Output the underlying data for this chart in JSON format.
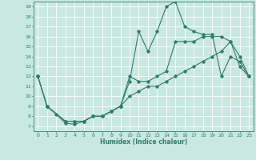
{
  "xlabel": "Humidex (Indice chaleur)",
  "xlim": [
    -0.5,
    23.5
  ],
  "ylim": [
    6.5,
    19.5
  ],
  "xticks": [
    0,
    1,
    2,
    3,
    4,
    5,
    6,
    7,
    8,
    9,
    10,
    11,
    12,
    13,
    14,
    15,
    16,
    17,
    18,
    19,
    20,
    21,
    22,
    23
  ],
  "yticks": [
    7,
    8,
    9,
    10,
    11,
    12,
    13,
    14,
    15,
    16,
    17,
    18,
    19
  ],
  "line_color": "#2e7d6e",
  "bg_color": "#c8e8e0",
  "grid_color": "#b0d8d0",
  "line1_x": [
    0,
    1,
    2,
    3,
    4,
    5,
    6,
    7,
    8,
    9,
    10,
    11,
    12,
    13,
    14,
    15,
    16,
    17,
    18,
    19,
    20,
    21,
    22,
    23
  ],
  "line1_y": [
    12,
    9,
    8.2,
    7.3,
    7.2,
    7.5,
    8.0,
    8.0,
    8.5,
    9.0,
    11.5,
    16.5,
    14.5,
    16.5,
    19.0,
    19.5,
    17.0,
    16.5,
    16.2,
    16.2,
    12.0,
    14.0,
    13.5,
    12.0
  ],
  "line2_x": [
    0,
    1,
    3,
    4,
    5,
    6,
    7,
    8,
    9,
    10,
    11,
    12,
    13,
    14,
    15,
    16,
    17,
    18,
    19,
    20,
    21,
    22,
    23
  ],
  "line2_y": [
    12,
    9,
    7.5,
    7.5,
    7.5,
    8.0,
    8.0,
    8.5,
    9.0,
    12.0,
    11.5,
    11.5,
    12.0,
    12.5,
    15.5,
    15.5,
    15.5,
    16.0,
    16.0,
    16.0,
    15.5,
    14.0,
    12.0
  ],
  "line3_x": [
    0,
    1,
    3,
    4,
    5,
    6,
    7,
    8,
    9,
    10,
    11,
    12,
    13,
    14,
    15,
    16,
    17,
    18,
    19,
    20,
    21,
    22,
    23
  ],
  "line3_y": [
    12,
    9,
    7.5,
    7.5,
    7.5,
    8.0,
    8.0,
    8.5,
    9.0,
    10.0,
    10.5,
    11.0,
    11.0,
    11.5,
    12.0,
    12.5,
    13.0,
    13.5,
    14.0,
    14.5,
    15.5,
    13.0,
    12.0
  ]
}
